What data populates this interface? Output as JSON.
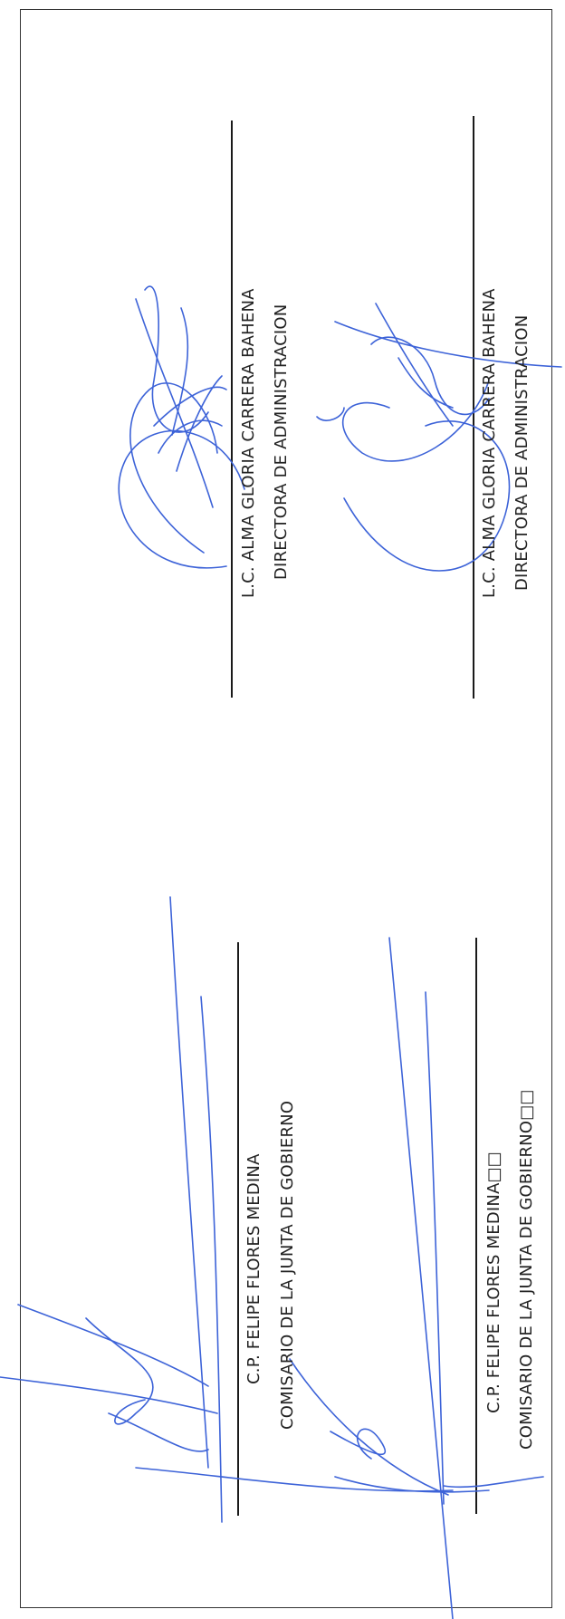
{
  "signature_blocks": [
    {
      "name": "L.C. ALMA GLORIA CARRERA BAHENA",
      "title": "DIRECTORA DE ADMINISTRACION"
    },
    {
      "name": "L.C. ALMA GLORIA CARRERA BAHENA",
      "title": "DIRECTORA DE ADMINISTRACION"
    },
    {
      "name": "C.P. FELIPE FLORES MEDINA",
      "title": "COMISARIO DE LA JUNTA DE GOBIERNO"
    },
    {
      "name": "C.P. FELIPE FLORES MEDINA□□",
      "title": "COMISARIO DE LA JUNTA DE GOBIERNO□□"
    }
  ],
  "colors": {
    "ink": "#3d63d8",
    "text": "#222222",
    "rule": "#1a1a1a",
    "border": "#333333"
  }
}
